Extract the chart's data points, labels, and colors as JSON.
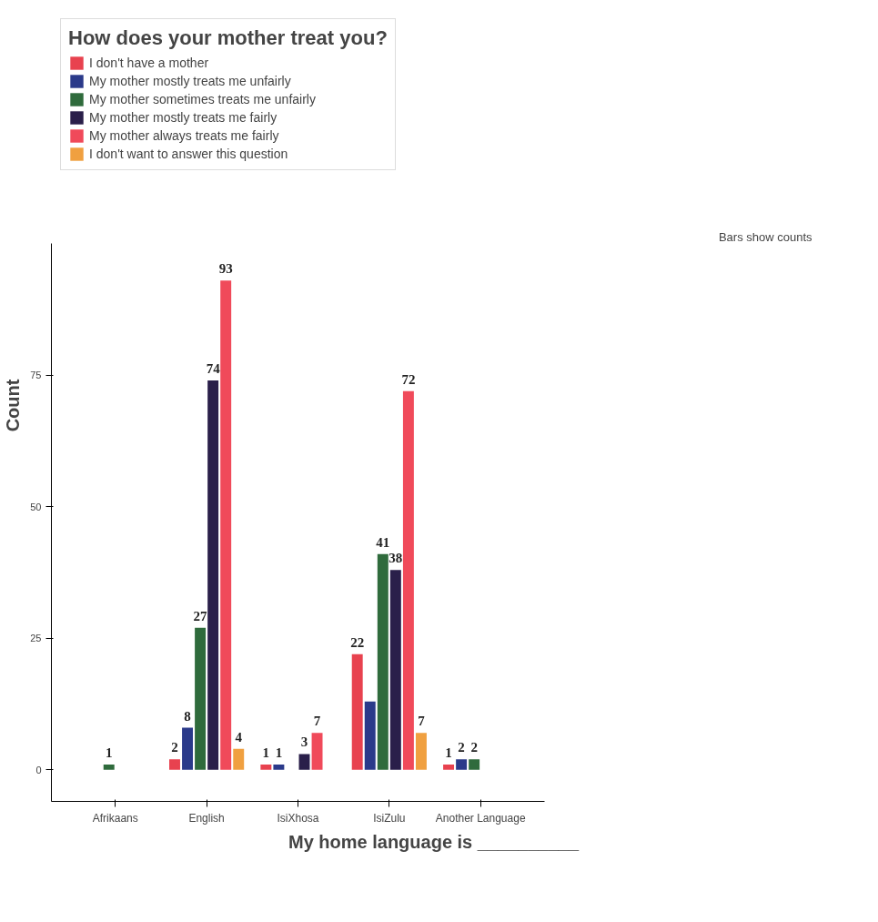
{
  "chart_data": {
    "type": "bar",
    "xlabel": "My home language is __________",
    "ylabel": "Count",
    "legend_title": "How does your mother treat you?",
    "legend": "top left",
    "grid": false,
    "categories": [
      "Afrikaans",
      "English",
      "IsiXhosa",
      "IsiZulu",
      "Another Language"
    ],
    "ylim": [
      -6,
      100
    ],
    "yticks": [
      0,
      25,
      50,
      75
    ],
    "series": [
      {
        "name": "I don't have a mother",
        "color": "#e8424f",
        "values": [
          null,
          2,
          1,
          22,
          1
        ],
        "value_labels": [
          null,
          "2",
          "1",
          "22",
          "1"
        ]
      },
      {
        "name": "My mother mostly treats me unfairly",
        "color": "#2b3a8a",
        "values": [
          null,
          8,
          1,
          13,
          2
        ],
        "value_labels": [
          null,
          "8",
          "1",
          null,
          "2"
        ]
      },
      {
        "name": "My mother sometimes treats me unfairly",
        "color": "#2f6b3c",
        "values": [
          1,
          27,
          null,
          41,
          2
        ],
        "value_labels": [
          "1",
          "27",
          null,
          "41",
          "2"
        ]
      },
      {
        "name": "My mother mostly treats me fairly",
        "color": "#2a1f4a",
        "values": [
          null,
          74,
          3,
          38,
          null
        ],
        "value_labels": [
          null,
          "74",
          "3",
          "38",
          null
        ]
      },
      {
        "name": "My mother always treats me fairly",
        "color": "#f04a5a",
        "values": [
          null,
          93,
          7,
          72,
          null
        ],
        "value_labels": [
          null,
          "93",
          "7",
          "72",
          null
        ]
      },
      {
        "name": "I don't want to answer this question",
        "color": "#f0a040",
        "values": [
          null,
          4,
          null,
          7,
          null
        ],
        "value_labels": [
          null,
          "4",
          null,
          "7",
          null
        ]
      }
    ],
    "annotations": [
      "Bars show counts"
    ]
  }
}
